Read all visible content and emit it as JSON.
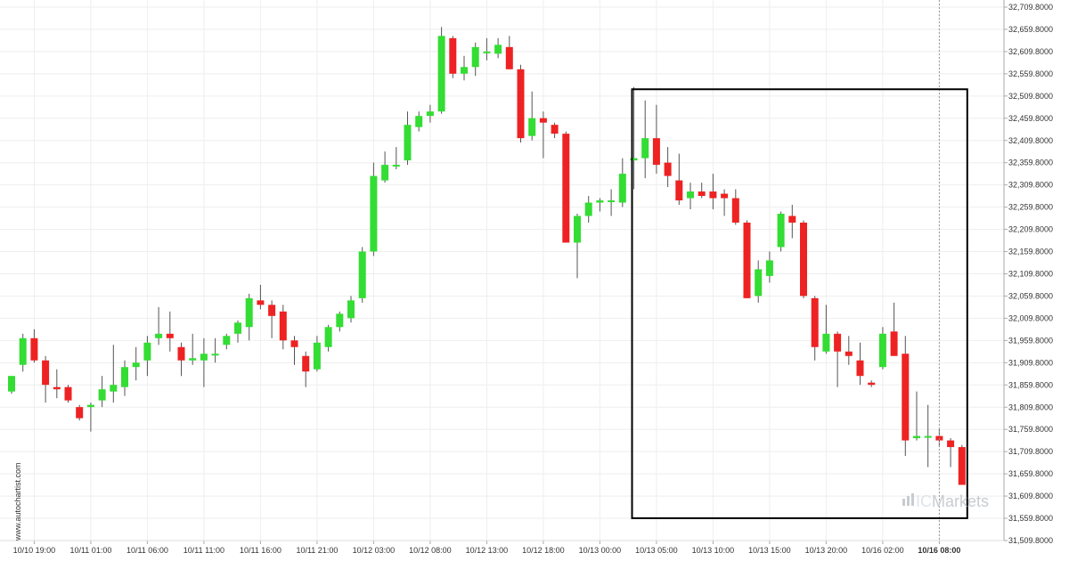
{
  "chart_data": {
    "type": "candlestick",
    "watermark": "www.autochartist.com",
    "brand": {
      "prefix": "IC",
      "name": "Markets"
    },
    "colors": {
      "up": "#33dd33",
      "down": "#ee2222",
      "wick": "#555555",
      "grid": "#eeeeee",
      "box": "#000000",
      "axis_line": "#aaaaaa"
    },
    "y_axis": {
      "min": 31509.8,
      "max": 32709.8,
      "position": "right",
      "ticks": [
        "32,709.8000",
        "32,659.8000",
        "32,609.8000",
        "32,559.8000",
        "32,509.8000",
        "32,459.8000",
        "32,409.8000",
        "32,359.8000",
        "32,309.8000",
        "32,259.8000",
        "32,209.8000",
        "32,159.8000",
        "32,109.8000",
        "32,059.8000",
        "32,009.8000",
        "31,959.8000",
        "31,909.8000",
        "31,859.8000",
        "31,809.8000",
        "31,759.8000",
        "31,709.8000",
        "31,659.8000",
        "31,609.8000",
        "31,559.8000",
        "31,509.8000"
      ]
    },
    "x_axis": {
      "ticks": [
        {
          "label": "10/10 19:00",
          "index": 2
        },
        {
          "label": "10/11 01:00",
          "index": 7
        },
        {
          "label": "10/11 06:00",
          "index": 12
        },
        {
          "label": "10/11 11:00",
          "index": 17
        },
        {
          "label": "10/11 16:00",
          "index": 22
        },
        {
          "label": "10/11 21:00",
          "index": 27
        },
        {
          "label": "10/12 03:00",
          "index": 32
        },
        {
          "label": "10/12 08:00",
          "index": 37
        },
        {
          "label": "10/12 13:00",
          "index": 42
        },
        {
          "label": "10/12 18:00",
          "index": 47
        },
        {
          "label": "10/13 00:00",
          "index": 52
        },
        {
          "label": "10/13 05:00",
          "index": 57
        },
        {
          "label": "10/13 10:00",
          "index": 62
        },
        {
          "label": "10/13 15:00",
          "index": 67
        },
        {
          "label": "10/13 20:00",
          "index": 72
        },
        {
          "label": "10/16 02:00",
          "index": 77
        },
        {
          "label": "10/16 08:00",
          "index": 82,
          "highlight": true
        }
      ]
    },
    "candles": [
      {
        "o": 31845,
        "h": 31880,
        "l": 31840,
        "c": 31880
      },
      {
        "o": 31905,
        "h": 31975,
        "l": 31890,
        "c": 31965
      },
      {
        "o": 31965,
        "h": 31985,
        "l": 31910,
        "c": 31915
      },
      {
        "o": 31915,
        "h": 31925,
        "l": 31820,
        "c": 31860
      },
      {
        "o": 31855,
        "h": 31895,
        "l": 31830,
        "c": 31850
      },
      {
        "o": 31855,
        "h": 31860,
        "l": 31820,
        "c": 31825
      },
      {
        "o": 31810,
        "h": 31815,
        "l": 31780,
        "c": 31785
      },
      {
        "o": 31810,
        "h": 31820,
        "l": 31755,
        "c": 31815
      },
      {
        "o": 31825,
        "h": 31880,
        "l": 31810,
        "c": 31850
      },
      {
        "o": 31845,
        "h": 31950,
        "l": 31820,
        "c": 31860
      },
      {
        "o": 31855,
        "h": 31915,
        "l": 31835,
        "c": 31900
      },
      {
        "o": 31900,
        "h": 31945,
        "l": 31870,
        "c": 31910
      },
      {
        "o": 31915,
        "h": 31970,
        "l": 31880,
        "c": 31955
      },
      {
        "o": 31965,
        "h": 32035,
        "l": 31950,
        "c": 31975
      },
      {
        "o": 31975,
        "h": 32025,
        "l": 31935,
        "c": 31965
      },
      {
        "o": 31945,
        "h": 31955,
        "l": 31880,
        "c": 31915
      },
      {
        "o": 31915,
        "h": 31975,
        "l": 31905,
        "c": 31920
      },
      {
        "o": 31915,
        "h": 31965,
        "l": 31855,
        "c": 31930
      },
      {
        "o": 31930,
        "h": 31965,
        "l": 31910,
        "c": 31930
      },
      {
        "o": 31950,
        "h": 31975,
        "l": 31940,
        "c": 31970
      },
      {
        "o": 31975,
        "h": 32005,
        "l": 31955,
        "c": 32000
      },
      {
        "o": 31990,
        "h": 32065,
        "l": 31960,
        "c": 32055
      },
      {
        "o": 32050,
        "h": 32085,
        "l": 32030,
        "c": 32040
      },
      {
        "o": 32040,
        "h": 32050,
        "l": 31965,
        "c": 32015
      },
      {
        "o": 32025,
        "h": 32040,
        "l": 31940,
        "c": 31960
      },
      {
        "o": 31960,
        "h": 31970,
        "l": 31905,
        "c": 31945
      },
      {
        "o": 31925,
        "h": 31935,
        "l": 31855,
        "c": 31890
      },
      {
        "o": 31895,
        "h": 31970,
        "l": 31890,
        "c": 31955
      },
      {
        "o": 31945,
        "h": 31995,
        "l": 31935,
        "c": 31990
      },
      {
        "o": 31990,
        "h": 32025,
        "l": 31980,
        "c": 32020
      },
      {
        "o": 32010,
        "h": 32060,
        "l": 32000,
        "c": 32050
      },
      {
        "o": 32055,
        "h": 32170,
        "l": 32045,
        "c": 32160
      },
      {
        "o": 32160,
        "h": 32360,
        "l": 32150,
        "c": 32330
      },
      {
        "o": 32320,
        "h": 32385,
        "l": 32315,
        "c": 32355
      },
      {
        "o": 32355,
        "h": 32395,
        "l": 32345,
        "c": 32355
      },
      {
        "o": 32365,
        "h": 32475,
        "l": 32355,
        "c": 32445
      },
      {
        "o": 32440,
        "h": 32475,
        "l": 32430,
        "c": 32465
      },
      {
        "o": 32465,
        "h": 32490,
        "l": 32450,
        "c": 32475
      },
      {
        "o": 32475,
        "h": 32665,
        "l": 32470,
        "c": 32645
      },
      {
        "o": 32640,
        "h": 32645,
        "l": 32550,
        "c": 32560
      },
      {
        "o": 32560,
        "h": 32600,
        "l": 32545,
        "c": 32575
      },
      {
        "o": 32575,
        "h": 32630,
        "l": 32555,
        "c": 32620
      },
      {
        "o": 32610,
        "h": 32640,
        "l": 32590,
        "c": 32610
      },
      {
        "o": 32605,
        "h": 32640,
        "l": 32595,
        "c": 32625
      },
      {
        "o": 32620,
        "h": 32645,
        "l": 32570,
        "c": 32570
      },
      {
        "o": 32570,
        "h": 32580,
        "l": 32405,
        "c": 32415
      },
      {
        "o": 32420,
        "h": 32520,
        "l": 32410,
        "c": 32460
      },
      {
        "o": 32460,
        "h": 32475,
        "l": 32370,
        "c": 32450
      },
      {
        "o": 32445,
        "h": 32450,
        "l": 32415,
        "c": 32425
      },
      {
        "o": 32425,
        "h": 32430,
        "l": 32180,
        "c": 32180
      },
      {
        "o": 32180,
        "h": 32245,
        "l": 32100,
        "c": 32240
      },
      {
        "o": 32240,
        "h": 32285,
        "l": 32225,
        "c": 32270
      },
      {
        "o": 32270,
        "h": 32280,
        "l": 32250,
        "c": 32275
      },
      {
        "o": 32275,
        "h": 32300,
        "l": 32240,
        "c": 32275
      },
      {
        "o": 32270,
        "h": 32370,
        "l": 32260,
        "c": 32335
      },
      {
        "o": 32365,
        "h": 32530,
        "l": 32300,
        "c": 32370
      },
      {
        "o": 32370,
        "h": 32500,
        "l": 32325,
        "c": 32415
      },
      {
        "o": 32415,
        "h": 32490,
        "l": 32335,
        "c": 32355
      },
      {
        "o": 32360,
        "h": 32395,
        "l": 32305,
        "c": 32330
      },
      {
        "o": 32320,
        "h": 32380,
        "l": 32265,
        "c": 32275
      },
      {
        "o": 32280,
        "h": 32315,
        "l": 32255,
        "c": 32295
      },
      {
        "o": 32295,
        "h": 32315,
        "l": 32280,
        "c": 32285
      },
      {
        "o": 32295,
        "h": 32335,
        "l": 32255,
        "c": 32280
      },
      {
        "o": 32290,
        "h": 32300,
        "l": 32240,
        "c": 32280
      },
      {
        "o": 32280,
        "h": 32300,
        "l": 32220,
        "c": 32225
      },
      {
        "o": 32225,
        "h": 32230,
        "l": 32055,
        "c": 32055
      },
      {
        "o": 32060,
        "h": 32140,
        "l": 32045,
        "c": 32120
      },
      {
        "o": 32105,
        "h": 32160,
        "l": 32090,
        "c": 32140
      },
      {
        "o": 32170,
        "h": 32250,
        "l": 32160,
        "c": 32245
      },
      {
        "o": 32240,
        "h": 32265,
        "l": 32190,
        "c": 32225
      },
      {
        "o": 32225,
        "h": 32230,
        "l": 32055,
        "c": 32060
      },
      {
        "o": 32055,
        "h": 32060,
        "l": 31915,
        "c": 31945
      },
      {
        "o": 31935,
        "h": 32040,
        "l": 31930,
        "c": 31975
      },
      {
        "o": 31975,
        "h": 31980,
        "l": 31855,
        "c": 31935
      },
      {
        "o": 31935,
        "h": 31970,
        "l": 31905,
        "c": 31925
      },
      {
        "o": 31915,
        "h": 31955,
        "l": 31860,
        "c": 31880
      },
      {
        "o": 31865,
        "h": 31870,
        "l": 31855,
        "c": 31860
      },
      {
        "o": 31900,
        "h": 31990,
        "l": 31895,
        "c": 31975
      },
      {
        "o": 31980,
        "h": 32045,
        "l": 31925,
        "c": 31925
      },
      {
        "o": 31930,
        "h": 31970,
        "l": 31700,
        "c": 31735
      },
      {
        "o": 31740,
        "h": 31845,
        "l": 31735,
        "c": 31745
      },
      {
        "o": 31745,
        "h": 31815,
        "l": 31675,
        "c": 31745
      },
      {
        "o": 31745,
        "h": 31760,
        "l": 31720,
        "c": 31735
      },
      {
        "o": 31735,
        "h": 31740,
        "l": 31675,
        "c": 31720
      },
      {
        "o": 31720,
        "h": 31725,
        "l": 31635,
        "c": 31635
      }
    ],
    "pattern_box": {
      "start_index": 55,
      "end_index": 84,
      "high": 32525,
      "low": 31560
    }
  }
}
